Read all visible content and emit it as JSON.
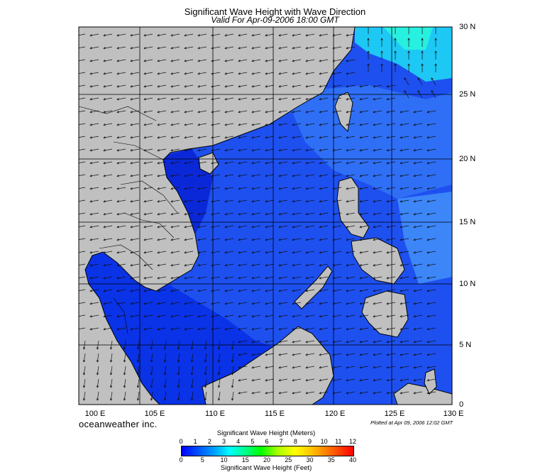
{
  "map": {
    "title": "Significant Wave Height with Wave Direction",
    "subtitle": "Valid For Apr-09-2006 18:00 GMT",
    "lat_labels": [
      "30 N",
      "25 N",
      "20 N",
      "15 N",
      "10 N",
      "5 N",
      "0"
    ],
    "lon_labels": [
      "100 E",
      "105 E",
      "110 E",
      "115 E",
      "120 E",
      "125 E",
      "130 E"
    ],
    "brand": "oceanweather inc.",
    "plotted": "Plotted at Apr 09, 2006 12:02 GMT",
    "land_color": "#c0c0c0",
    "sea_color": "#1e50f0"
  },
  "colorbar": {
    "title_meters": "Significant Wave Height (Meters)",
    "ticks_meters": [
      "0",
      "1",
      "2",
      "3",
      "4",
      "5",
      "6",
      "7",
      "8",
      "9",
      "10",
      "11",
      "12"
    ],
    "title_feet": "Significant Wave Height (Feet)",
    "ticks_feet": [
      "0",
      "5",
      "10",
      "15",
      "20",
      "25",
      "30",
      "35",
      "40"
    ]
  }
}
